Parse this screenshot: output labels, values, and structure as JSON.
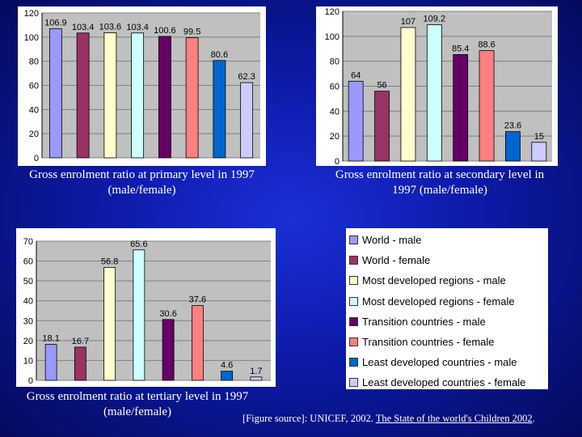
{
  "colors": {
    "series": [
      "#9999ff",
      "#993366",
      "#ffffcc",
      "#ccffff",
      "#660066",
      "#ff8080",
      "#0066cc",
      "#ccccff"
    ]
  },
  "legend": {
    "entries": [
      "World - male",
      "World - female",
      "Most developed regions - male",
      "Most developed regions - female",
      "Transition countries - male",
      "Transition countries - female",
      "Least developed countries - male",
      "Least developed countries - female"
    ]
  },
  "chart_data": [
    {
      "type": "bar",
      "title": "Gross enrolment ratio at primary level in 1997 (male/female)",
      "categories": [
        "World - male",
        "World - female",
        "Most developed regions - male",
        "Most developed regions - female",
        "Transition countries - male",
        "Transition countries - female",
        "Least developed countries - male",
        "Least developed countries - female"
      ],
      "values": [
        106.9,
        103.4,
        103.6,
        103.4,
        100.6,
        99.5,
        80.6,
        62.3
      ],
      "ylim": [
        0,
        120
      ],
      "yticks": [
        0,
        20,
        40,
        60,
        80,
        100,
        120
      ],
      "grid": true
    },
    {
      "type": "bar",
      "title": "Gross enrolment ratio at secondary level in 1997 (male/female)",
      "categories": [
        "World - male",
        "World - female",
        "Most developed regions - male",
        "Most developed regions - female",
        "Transition countries - male",
        "Transition countries - female",
        "Least developed countries - male",
        "Least developed countries - female"
      ],
      "values": [
        64,
        56,
        107,
        109.2,
        85.4,
        88.6,
        23.6,
        15
      ],
      "ylim": [
        0,
        120
      ],
      "yticks": [
        0,
        20,
        40,
        60,
        80,
        100,
        120
      ],
      "grid": true
    },
    {
      "type": "bar",
      "title": "Gross enrolment ratio at tertiary level in 1997 (male/female)",
      "categories": [
        "World - male",
        "World - female",
        "Most developed regions - male",
        "Most developed regions - female",
        "Transition countries - male",
        "Transition countries - female",
        "Least developed countries - male",
        "Least developed countries - female"
      ],
      "values": [
        18.1,
        16.7,
        56.8,
        65.6,
        30.6,
        37.6,
        4.6,
        1.7
      ],
      "ylim": [
        0,
        70
      ],
      "yticks": [
        0,
        10,
        20,
        30,
        40,
        50,
        60,
        70
      ],
      "grid": true
    }
  ],
  "source": {
    "prefix": "[Figure source]: UNICEF, 2002. ",
    "link_text": "The State of the world's Children 2002",
    "suffix": "."
  }
}
